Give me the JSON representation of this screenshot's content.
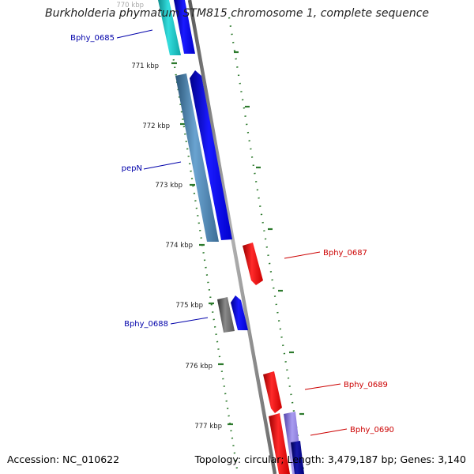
{
  "title": "Burkholderia phymatum STM815 chromosome 1, complete sequence",
  "footer": {
    "accession": "Accession: NC_010622",
    "summary": "Topology: circular; Length: 3,479,187 bp; Genes: 3,140"
  },
  "scale": {
    "ticks": [
      "770 kbp",
      "771 kbp",
      "772 kbp",
      "773 kbp",
      "774 kbp",
      "775 kbp",
      "776 kbp",
      "777 kbp"
    ]
  },
  "genes": [
    {
      "label": "Bphy_0685",
      "color": "#0000aa"
    },
    {
      "label": "pepN",
      "color": "#0000aa"
    },
    {
      "label": "Bphy_0687",
      "color": "#cc0000"
    },
    {
      "label": "Bphy_0688",
      "color": "#0000aa"
    },
    {
      "label": "Bphy_0689",
      "color": "#cc0000"
    },
    {
      "label": "Bphy_0690",
      "color": "#cc0000"
    }
  ],
  "colors": {
    "backbone": "#8a8a8a",
    "dots": "#2d7a2d",
    "forward": "#0000ee",
    "reverse": "#ee0000",
    "cyan": "#22cccc",
    "steelblue": "#4a82b4",
    "grey": "#666666",
    "lavender": "#8877dd",
    "navy": "#000088"
  }
}
